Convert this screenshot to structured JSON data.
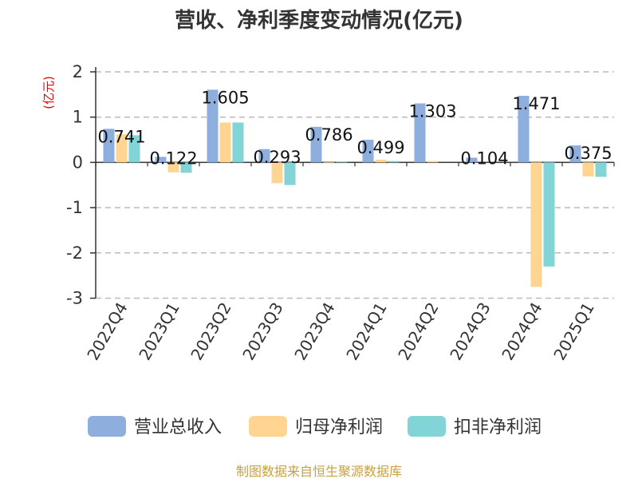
{
  "chart_data": {
    "type": "bar",
    "title": "营收、净利季度变动情况(亿元)",
    "ylabel": "(亿元)",
    "categories": [
      "2022Q4",
      "2023Q1",
      "2023Q2",
      "2023Q3",
      "2023Q4",
      "2024Q1",
      "2024Q2",
      "2024Q3",
      "2024Q4",
      "2025Q1"
    ],
    "series": [
      {
        "name": "营业总收入",
        "color": "#8eaedd",
        "values": [
          0.741,
          0.122,
          1.605,
          0.293,
          0.786,
          0.499,
          1.303,
          0.104,
          1.471,
          0.375
        ]
      },
      {
        "name": "归母净利润",
        "color": "#ffd591",
        "values": [
          0.62,
          -0.22,
          0.88,
          -0.46,
          -0.02,
          0.06,
          0.03,
          0.0,
          -2.75,
          -0.31
        ]
      },
      {
        "name": "扣非净利润",
        "color": "#82d4d6",
        "values": [
          0.6,
          -0.23,
          0.88,
          -0.5,
          0.02,
          0.03,
          0.0,
          0.0,
          -2.3,
          -0.32
        ]
      }
    ],
    "data_labels": [
      "0.741",
      "0.122",
      "1.605",
      "0.293",
      "0.786",
      "0.499",
      "1.303",
      "0.104",
      "1.471",
      "0.375"
    ],
    "ylim": [
      -3,
      2
    ],
    "yticks": [
      "2",
      "1",
      "0",
      "-1",
      "-2",
      "-3"
    ],
    "grid": true,
    "legend": "bottom"
  },
  "source": "制图数据来自恒生聚源数据库"
}
